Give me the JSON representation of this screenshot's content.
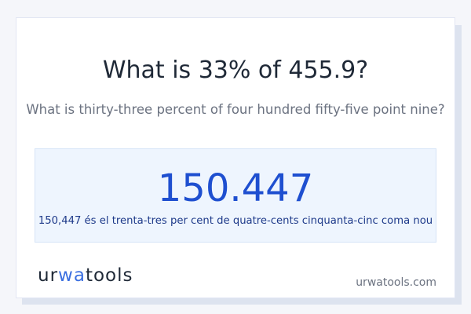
{
  "heading": "What is 33% of 455.9?",
  "subheading": "What is thirty-three percent of four hundred fifty-five point nine?",
  "result": {
    "value": "150.447",
    "words": "150,447 és el trenta-tres per cent de quatre-cents cinquanta-cinc coma nou"
  },
  "logo": {
    "part1": "ur",
    "accent": "wa",
    "part2": "tools"
  },
  "site": "urwatools.com",
  "colors": {
    "accent": "#1e4fd0",
    "logo_accent": "#3b6fe0"
  }
}
